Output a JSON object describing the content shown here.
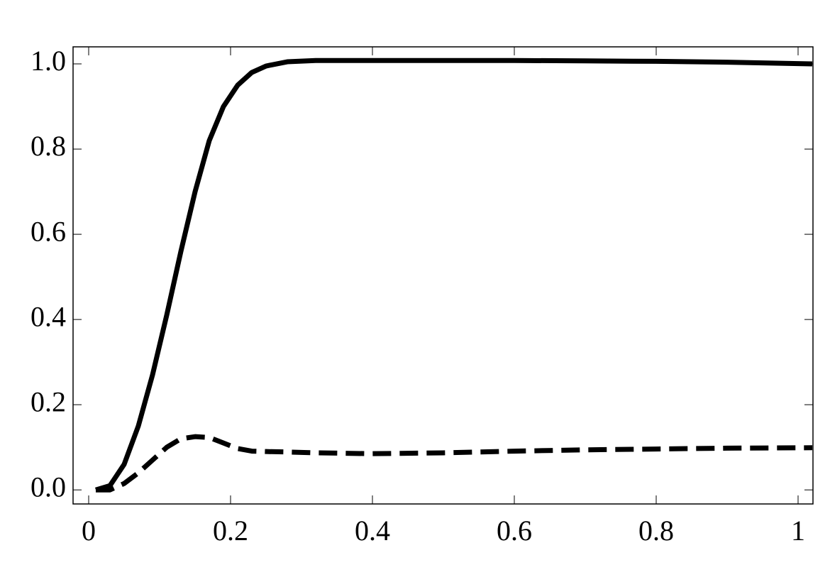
{
  "chart_data": {
    "type": "line",
    "x": [
      0.01,
      0.03,
      0.05,
      0.07,
      0.09,
      0.11,
      0.13,
      0.15,
      0.17,
      0.19,
      0.21,
      0.23,
      0.25,
      0.28,
      0.32,
      0.4,
      0.5,
      0.6,
      0.7,
      0.8,
      0.9,
      1.02
    ],
    "series": [
      {
        "color": "#000000",
        "style": "solid",
        "values": [
          0,
          0.01,
          0.06,
          0.15,
          0.27,
          0.41,
          0.56,
          0.7,
          0.82,
          0.9,
          0.95,
          0.98,
          0.995,
          1.005,
          1.008,
          1.008,
          1.008,
          1.008,
          1.007,
          1.006,
          1.004,
          1.0
        ]
      },
      {
        "color": "#000000",
        "style": "dashed",
        "values": [
          0,
          0.0,
          0.015,
          0.04,
          0.07,
          0.1,
          0.12,
          0.125,
          0.123,
          0.11,
          0.097,
          0.091,
          0.09,
          0.089,
          0.087,
          0.085,
          0.087,
          0.091,
          0.094,
          0.096,
          0.098,
          0.099
        ]
      }
    ],
    "xlim": [
      -0.022,
      1.021
    ],
    "ylim": [
      -0.033,
      1.04
    ],
    "xticks": [
      0,
      0.2,
      0.4,
      0.6,
      0.8,
      1
    ],
    "yticks": [
      {
        "value": 0,
        "label": "0.0"
      },
      0.2,
      0.4,
      0.6,
      0.8,
      {
        "value": 1,
        "label": "1.0"
      }
    ],
    "grid": false
  }
}
